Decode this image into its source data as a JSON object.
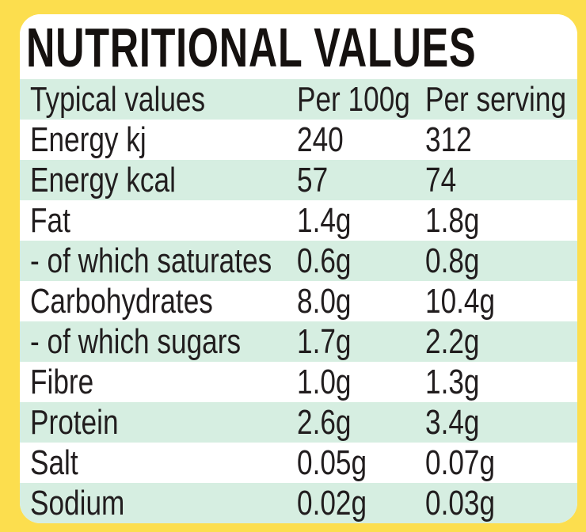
{
  "title": "NUTRITIONAL VALUES",
  "table": {
    "header": {
      "label": "Typical values",
      "per100g": "Per 100g",
      "perServing": "Per serving"
    },
    "rows": [
      {
        "label": "Energy kj",
        "per100g": "240",
        "perServing": "312"
      },
      {
        "label": "Energy kcal",
        "per100g": "57",
        "perServing": "74"
      },
      {
        "label": "Fat",
        "per100g": "1.4g",
        "perServing": "1.8g"
      },
      {
        "label": "- of which saturates",
        "per100g": "0.6g",
        "perServing": "0.8g"
      },
      {
        "label": "Carbohydrates",
        "per100g": "8.0g",
        "perServing": "10.4g"
      },
      {
        "label": "- of which sugars",
        "per100g": "1.7g",
        "perServing": "2.2g"
      },
      {
        "label": "Fibre",
        "per100g": "1.0g",
        "perServing": "1.3g"
      },
      {
        "label": "Protein",
        "per100g": "2.6g",
        "perServing": "3.4g"
      },
      {
        "label": "Salt",
        "per100g": "0.05g",
        "perServing": "0.07g"
      },
      {
        "label": "Sodium",
        "per100g": "0.02g",
        "perServing": "0.03g"
      }
    ]
  },
  "colors": {
    "frame": "#FCDE4E",
    "card": "#FFFFFF",
    "stripe": "#D6EEE1",
    "text": "#211D1E",
    "title": "#15110F"
  }
}
